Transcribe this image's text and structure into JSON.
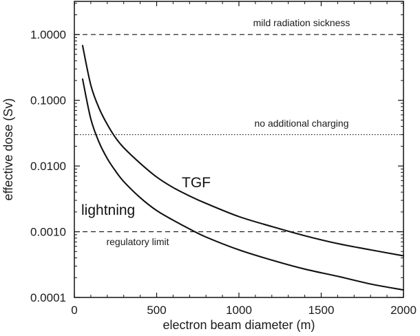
{
  "chart_data": {
    "type": "line",
    "xlabel": "electron beam diameter (m)",
    "ylabel": "effective dose (Sv)",
    "xlim": [
      0,
      2000
    ],
    "ylim": [
      0.0001,
      3.2
    ],
    "yscale": "log",
    "grid": false,
    "x_ticks": [
      0,
      500,
      1000,
      1500,
      2000
    ],
    "x_tick_labels": [
      "0",
      "500",
      "1000",
      "1500",
      "2000"
    ],
    "y_ticks": [
      0.0001,
      0.001,
      0.01,
      0.1,
      1
    ],
    "y_tick_labels": [
      "0.0001",
      "0.0010",
      "0.0100",
      "0.1000",
      "1.0000"
    ],
    "series": [
      {
        "name": "TGF",
        "color": "#111111",
        "x": [
          50,
          100,
          150,
          200,
          250,
          300,
          400,
          500,
          600,
          700,
          800,
          1000,
          1200,
          1400,
          1600,
          1800,
          2000
        ],
        "y": [
          0.68,
          0.17,
          0.076,
          0.043,
          0.027,
          0.019,
          0.011,
          0.0068,
          0.0047,
          0.0035,
          0.0027,
          0.0017,
          0.0012,
          0.00087,
          0.00066,
          0.00053,
          0.00043
        ]
      },
      {
        "name": "lightning",
        "color": "#111111",
        "x": [
          50,
          100,
          150,
          200,
          250,
          300,
          400,
          500,
          600,
          700,
          800,
          1000,
          1200,
          1400,
          1600,
          1800,
          2000
        ],
        "y": [
          0.21,
          0.052,
          0.023,
          0.013,
          0.0084,
          0.0058,
          0.0033,
          0.0021,
          0.0015,
          0.0011,
          0.00083,
          0.00053,
          0.00037,
          0.00027,
          0.00021,
          0.00016,
          0.00013
        ]
      }
    ],
    "reference_lines": [
      {
        "label": "mild radiation sickness",
        "y": 1.0,
        "style": "dashed"
      },
      {
        "label": "no additional charging",
        "y": 0.03,
        "style": "dotted"
      },
      {
        "label": "regulatory limit",
        "y": 0.001,
        "style": "dashed"
      }
    ]
  }
}
